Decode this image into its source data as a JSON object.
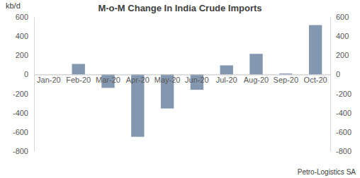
{
  "chart_data": {
    "type": "bar",
    "title": "M-o-M Change In India Crude Imports",
    "y_label": "kb/d",
    "annotations": [
      "Petro-Logistics SA"
    ],
    "categories": [
      "Jan-20",
      "Feb-20",
      "Mar-20",
      "Apr-20",
      "May-20",
      "Jun-20",
      "Jul-20",
      "Aug-20",
      "Sep-20",
      "Oct-20"
    ],
    "values": [
      null,
      110,
      -140,
      -650,
      -355,
      -160,
      95,
      215,
      10,
      515
    ],
    "color": "#8497b0",
    "ylim": [
      -800,
      600
    ],
    "yticks": [
      -800,
      -600,
      -400,
      -200,
      0,
      200,
      400,
      600
    ],
    "y2lim": [
      -800,
      600
    ],
    "y2ticks": [
      -800,
      -600,
      -400,
      -200,
      0,
      200,
      400,
      600
    ],
    "grid": false
  }
}
